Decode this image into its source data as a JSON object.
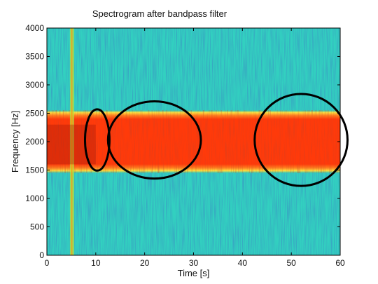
{
  "chart_data": {
    "type": "heatmap",
    "title": "Spectrogram after bandpass filter",
    "xlabel": "Time [s]",
    "ylabel": "Frequency [Hz]",
    "xlim": [
      0,
      60
    ],
    "ylim": [
      0,
      4000
    ],
    "x_ticks": [
      0,
      10,
      20,
      30,
      40,
      50,
      60
    ],
    "y_ticks": [
      0,
      500,
      1000,
      1500,
      2000,
      2500,
      3000,
      3500,
      4000
    ],
    "colormap": "jet",
    "passband_hz": [
      1450,
      2550
    ],
    "passband_level": "high (red)",
    "stopband_level": "low (cyan/blue)",
    "strong_event_time_s": 5,
    "ellipse_annotations": [
      {
        "center_time_s": 10.3,
        "center_freq_hz": 2030,
        "half_width_s": 2.5,
        "half_height_hz": 540
      },
      {
        "center_time_s": 22,
        "center_freq_hz": 2030,
        "half_width_s": 9.5,
        "half_height_hz": 680
      },
      {
        "center_time_s": 52,
        "center_freq_hz": 2030,
        "half_width_s": 9.5,
        "half_height_hz": 810
      }
    ],
    "colors": {
      "low": "#2aa8e0",
      "mid": "#32d0c0",
      "passband_edge": "#ffd040",
      "high": "#ff3a0a",
      "peak": "#a01808",
      "annotation": "#000000"
    }
  }
}
